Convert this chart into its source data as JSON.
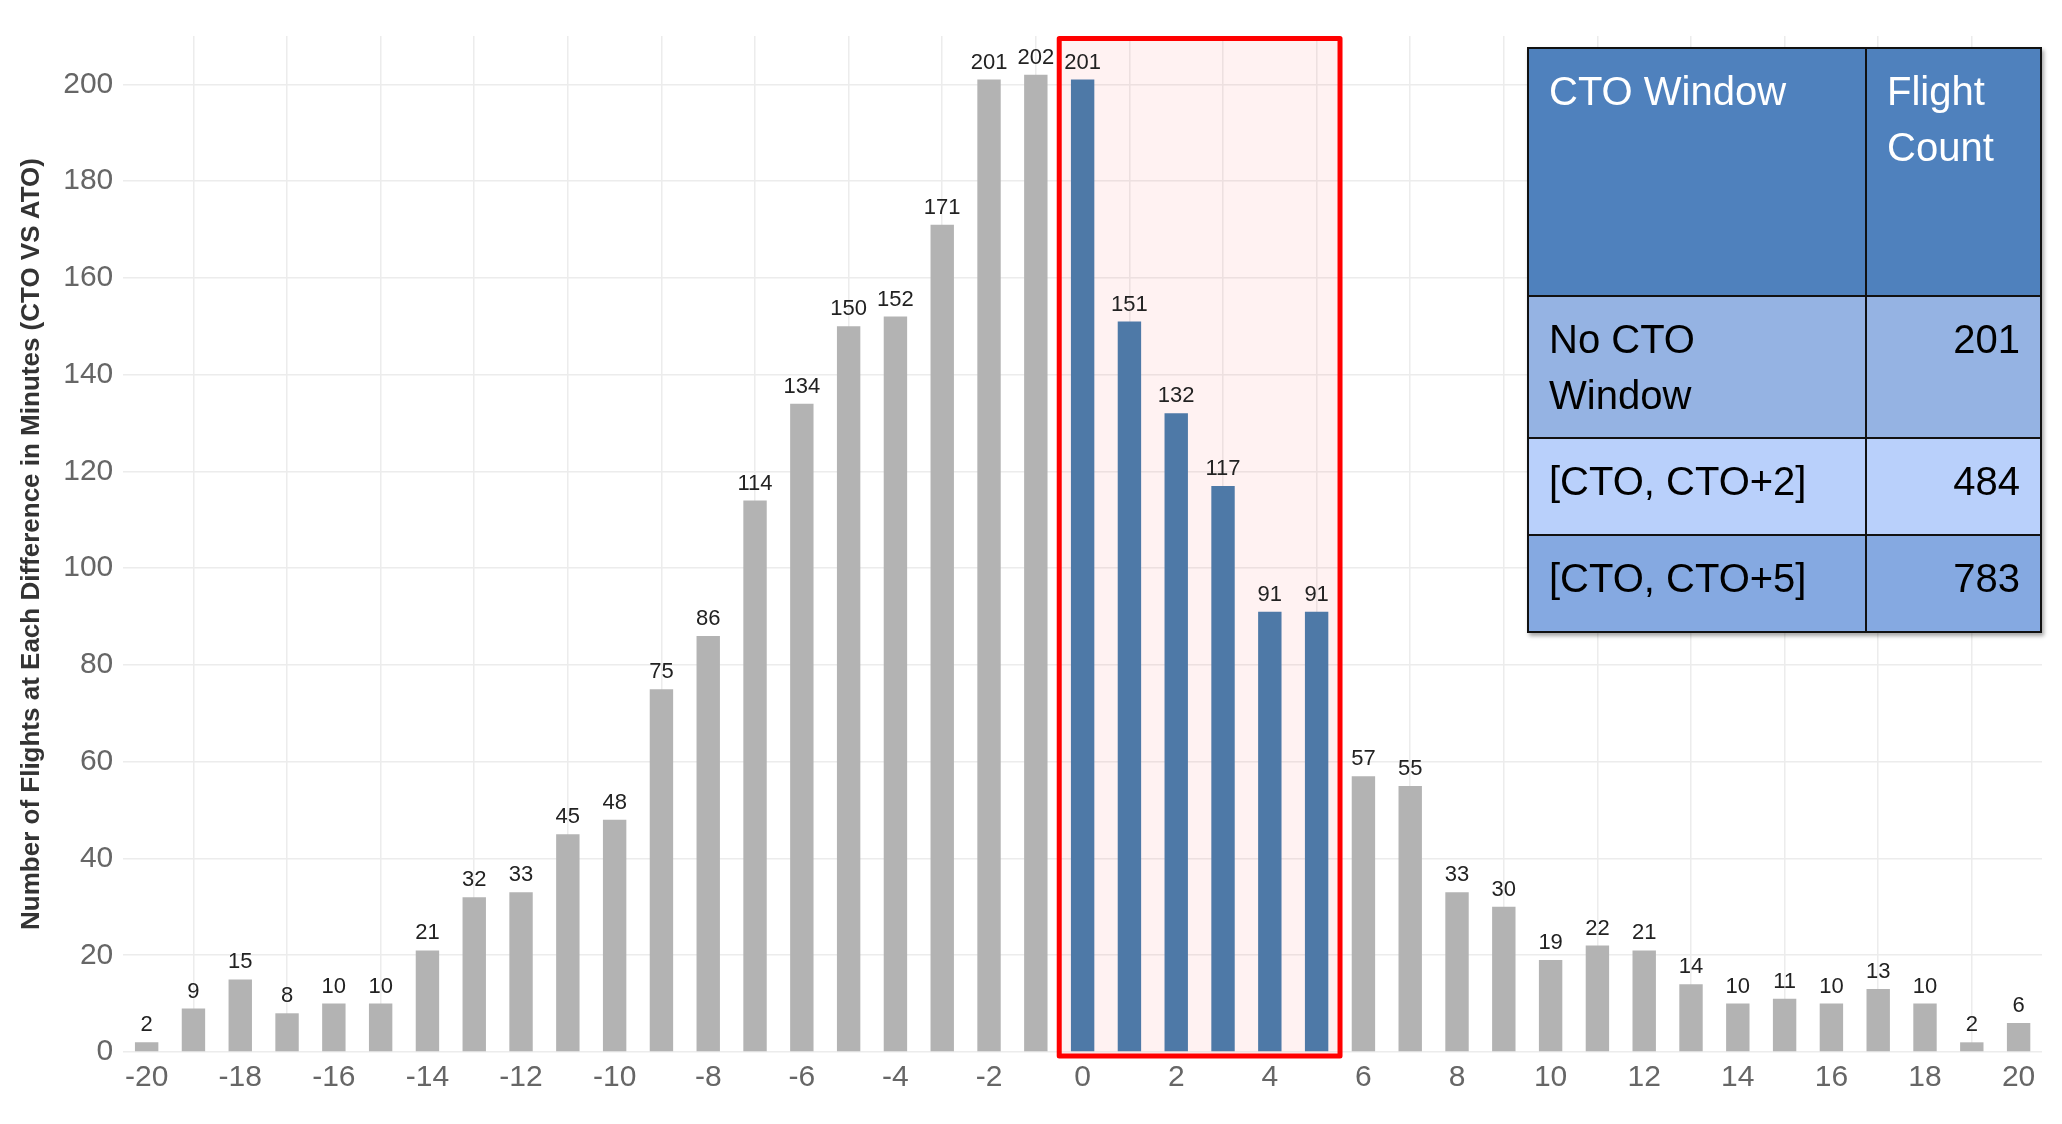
{
  "chart_data": {
    "type": "bar",
    "x": [
      -20,
      -19,
      -18,
      -17,
      -16,
      -15,
      -14,
      -13,
      -12,
      -11,
      -10,
      -9,
      -8,
      -7,
      -6,
      -5,
      -4,
      -3,
      -2,
      -1,
      0,
      1,
      2,
      3,
      4,
      5,
      6,
      7,
      8,
      9,
      10,
      11,
      12,
      13,
      14,
      15,
      16,
      17,
      18,
      19,
      20
    ],
    "values": [
      2,
      9,
      15,
      8,
      10,
      10,
      21,
      32,
      33,
      45,
      48,
      75,
      86,
      114,
      134,
      150,
      152,
      171,
      201,
      202,
      201,
      151,
      132,
      117,
      91,
      91,
      57,
      55,
      33,
      30,
      19,
      22,
      21,
      14,
      10,
      11,
      10,
      13,
      10,
      2,
      6
    ],
    "colors": [
      "#b3b3b3",
      "#b3b3b3",
      "#b3b3b3",
      "#b3b3b3",
      "#b3b3b3",
      "#b3b3b3",
      "#b3b3b3",
      "#b3b3b3",
      "#b3b3b3",
      "#b3b3b3",
      "#b3b3b3",
      "#b3b3b3",
      "#b3b3b3",
      "#b3b3b3",
      "#b3b3b3",
      "#b3b3b3",
      "#b3b3b3",
      "#b3b3b3",
      "#b3b3b3",
      "#b3b3b3",
      "#4e79a7",
      "#4e79a7",
      "#4e79a7",
      "#4e79a7",
      "#4e79a7",
      "#4e79a7",
      "#b3b3b3",
      "#b3b3b3",
      "#b3b3b3",
      "#b3b3b3",
      "#b3b3b3",
      "#b3b3b3",
      "#b3b3b3",
      "#b3b3b3",
      "#b3b3b3",
      "#b3b3b3",
      "#b3b3b3",
      "#b3b3b3",
      "#b3b3b3",
      "#b3b3b3",
      "#b3b3b3"
    ],
    "ylabel": "Number of Flights at Each Difference in Minutes (CTO VS ATO)",
    "xlim": [
      -20.5,
      20.5
    ],
    "xticks": [
      -20,
      -18,
      -16,
      -14,
      -12,
      -10,
      -8,
      -6,
      -4,
      -2,
      0,
      2,
      4,
      6,
      8,
      10,
      12,
      14,
      16,
      18,
      20
    ],
    "ylim": [
      0,
      210
    ],
    "yticks": [
      0,
      20,
      40,
      60,
      80,
      100,
      120,
      140,
      160,
      180,
      200
    ],
    "grid": true,
    "data_labels": true,
    "bands": [
      {
        "axis": "x",
        "from": -0.5,
        "to": 5.5,
        "color": "#ff0000"
      }
    ],
    "annotations": [
      "CTO Window",
      "Flight Count",
      "No CTO Window",
      "201",
      "[CTO, CTO+2]",
      "484",
      "[CTO, CTO+5]",
      "783"
    ]
  }
}
